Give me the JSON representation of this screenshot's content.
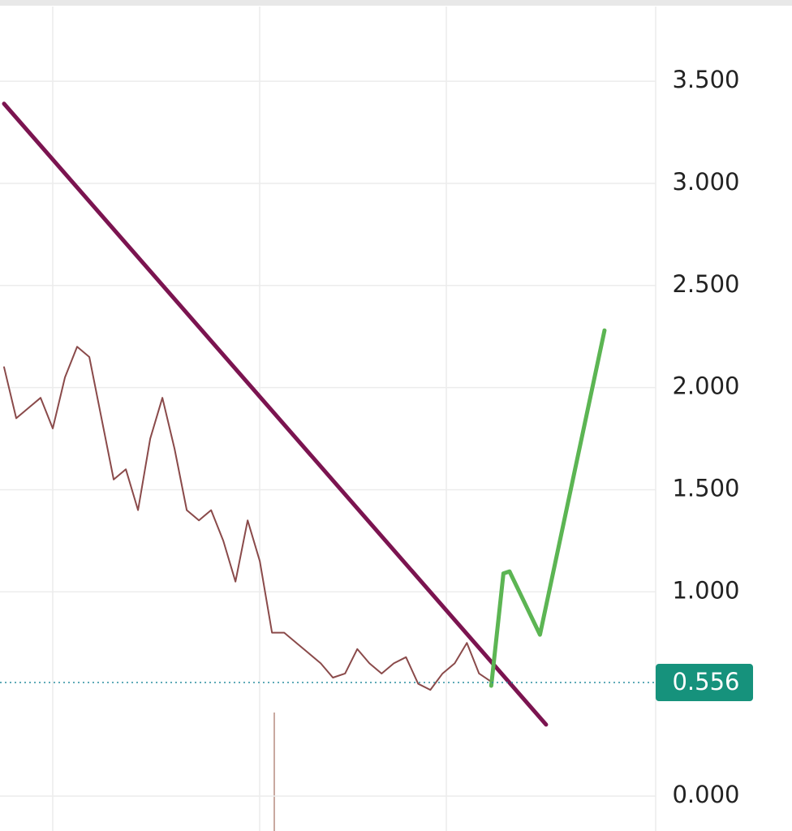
{
  "chart_data": {
    "type": "line",
    "ylim": [
      -0.171,
      3.866
    ],
    "xlim": [
      0,
      53.5
    ],
    "yticks": [
      {
        "value": 0,
        "label": "0.000"
      },
      {
        "value": 1,
        "label": "1.000"
      },
      {
        "value": 1.5,
        "label": "1.500"
      },
      {
        "value": 2,
        "label": "2.000"
      },
      {
        "value": 2.5,
        "label": "2.500"
      },
      {
        "value": 3,
        "label": "3.000"
      },
      {
        "value": 3.5,
        "label": "3.500"
      }
    ],
    "grid": true,
    "price_line": 0.556,
    "series": [
      {
        "color": "#8a4a4a",
        "x": [
          0,
          1,
          2,
          3,
          4,
          5,
          6,
          7,
          8,
          9,
          10,
          11,
          12,
          13,
          14,
          15,
          16,
          17,
          18,
          19,
          20,
          21,
          22,
          23,
          24,
          25,
          26,
          27,
          28,
          29,
          30,
          31,
          32,
          33,
          34,
          35,
          36,
          37,
          38,
          39,
          40
        ],
        "values": [
          2.1,
          1.85,
          1.9,
          1.95,
          1.8,
          2.05,
          2.2,
          2.15,
          1.85,
          1.55,
          1.6,
          1.4,
          1.75,
          1.95,
          1.7,
          1.4,
          1.35,
          1.4,
          1.25,
          1.05,
          1.35,
          1.15,
          0.8,
          0.8,
          0.75,
          0.7,
          0.65,
          0.58,
          0.6,
          0.72,
          0.65,
          0.6,
          0.65,
          0.68,
          0.55,
          0.52,
          0.6,
          0.65,
          0.75,
          0.6,
          0.56
        ]
      },
      {
        "color": "#7b1450",
        "x": [
          0,
          44.5
        ],
        "values": [
          3.39,
          0.35
        ]
      },
      {
        "color": "#5cb553",
        "x": [
          40,
          41,
          41.5,
          44,
          49.3
        ],
        "values": [
          0.54,
          1.09,
          1.1,
          0.79,
          2.28
        ]
      }
    ]
  }
}
